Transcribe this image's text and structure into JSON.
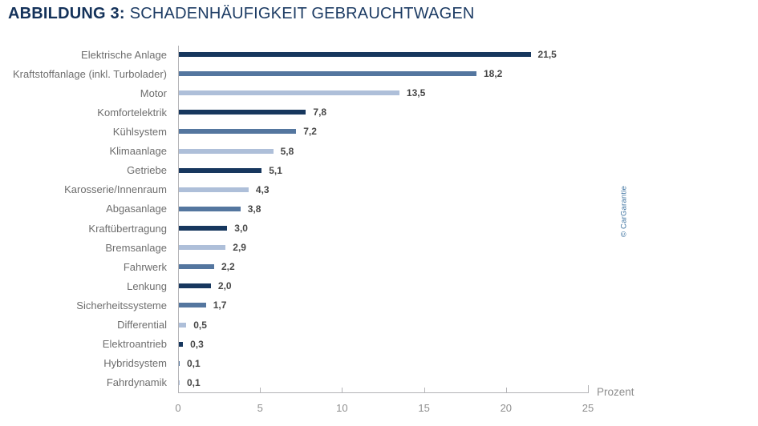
{
  "header": {
    "title_prefix": "ABBILDUNG 3:",
    "title_rest": "SCHADENHÄUFIGKEIT GEBRAUCHTWAGEN"
  },
  "credit": "© CarGarantie",
  "chart_data": {
    "type": "bar",
    "orientation": "horizontal",
    "title": "ABBILDUNG 3: SCHADENHÄUFIGKEIT GEBRAUCHTWAGEN",
    "categories": [
      "Elektrische Anlage",
      "Kraftstoffanlage (inkl. Turbolader)",
      "Motor",
      "Komfortelektrik",
      "Kühlsystem",
      "Klimaanlage",
      "Getriebe",
      "Karosserie/Innenraum",
      "Abgasanlage",
      "Kraftübertragung",
      "Bremsanlage",
      "Fahrwerk",
      "Lenkung",
      "Sicherheitssysteme",
      "Differential",
      "Elektroantrieb",
      "Hybridsystem",
      "Fahrdynamik"
    ],
    "values": [
      21.5,
      18.2,
      13.5,
      7.8,
      7.2,
      5.8,
      5.1,
      4.3,
      3.8,
      3.0,
      2.9,
      2.2,
      2.0,
      1.7,
      0.5,
      0.3,
      0.1,
      0.1
    ],
    "value_labels": [
      "21,5",
      "18,2",
      "13,5",
      "7,8",
      "7,2",
      "5,8",
      "5,1",
      "4,3",
      "3,8",
      "3,0",
      "2,9",
      "2,2",
      "2,0",
      "1,7",
      "0,5",
      "0,3",
      "0,1",
      "0,1"
    ],
    "bar_color_keys": [
      "dark",
      "medium",
      "light",
      "dark",
      "medium",
      "light",
      "dark",
      "light",
      "medium",
      "dark",
      "light",
      "medium",
      "dark",
      "medium",
      "light",
      "dark",
      "medium",
      "light"
    ],
    "palette": {
      "dark": "#17375e",
      "medium": "#54769f",
      "light": "#aebfd9"
    },
    "xlabel": "Prozent",
    "x_ticks": [
      "0",
      "5",
      "10",
      "15",
      "20",
      "25"
    ],
    "x_tick_values": [
      0,
      5,
      10,
      15,
      20,
      25
    ],
    "xlim": [
      0,
      25
    ],
    "grid": false,
    "legend": false
  }
}
